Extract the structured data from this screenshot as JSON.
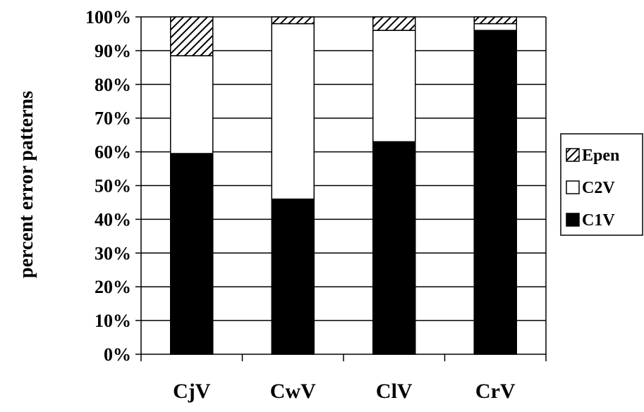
{
  "chart_data": {
    "type": "bar",
    "stacked": true,
    "normalized": true,
    "ylabel": "percent error patterns",
    "xlabel": "",
    "ylim": [
      0,
      100
    ],
    "y_ticks": [
      "0%",
      "10%",
      "20%",
      "30%",
      "40%",
      "50%",
      "60%",
      "70%",
      "80%",
      "90%",
      "100%"
    ],
    "categories": [
      "CjV",
      "CwV",
      "ClV",
      "CrV"
    ],
    "series": [
      {
        "name": "C1V",
        "values": [
          59.5,
          46,
          63,
          96
        ],
        "color": "#000000",
        "pattern": "solid"
      },
      {
        "name": "C2V",
        "values": [
          29,
          52,
          33,
          2
        ],
        "color": "#ffffff",
        "pattern": "solid"
      },
      {
        "name": "Epen",
        "values": [
          11.5,
          2,
          4,
          2
        ],
        "color": "#000000",
        "pattern": "diagonal-hatch"
      }
    ],
    "legend": {
      "position": "right",
      "entries": [
        "Epen",
        "C2V",
        "C1V"
      ]
    },
    "grid": {
      "horizontal": true,
      "vertical": false
    }
  }
}
